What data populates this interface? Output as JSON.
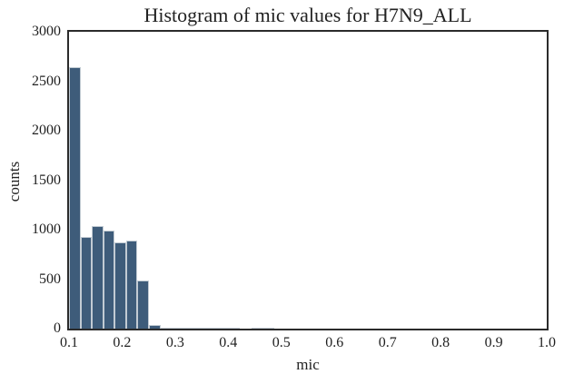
{
  "figure": {
    "title": "Histogram of mic values for H7N9_ALL",
    "xlabel": "mic",
    "ylabel": "counts"
  },
  "colors": {
    "bar_fill": "#3e5c7a",
    "bar_edge": "#c2cbd3",
    "spine": "#2b2b2b",
    "text": "#1f1f1f",
    "background": "#ffffff"
  },
  "chart_data": {
    "type": "bar",
    "subtype": "histogram",
    "title": "Histogram of mic values for H7N9_ALL",
    "xlabel": "mic",
    "ylabel": "counts",
    "xlim": [
      0.1,
      1.0
    ],
    "ylim": [
      0,
      3000
    ],
    "grid": false,
    "legend_position": "none",
    "x_tick_labels": [
      "0.1",
      "0.2",
      "0.3",
      "0.4",
      "0.5",
      "0.6",
      "0.7",
      "0.8",
      "0.9",
      "1.0"
    ],
    "x_tick_values": [
      0.1,
      0.2,
      0.3,
      0.4,
      0.5,
      0.6,
      0.7,
      0.8,
      0.9,
      1.0
    ],
    "y_tick_labels": [
      "0",
      "500",
      "1000",
      "1500",
      "2000",
      "2500",
      "3000"
    ],
    "y_tick_values": [
      0,
      500,
      1000,
      1500,
      2000,
      2500,
      3000
    ],
    "bin_start": 0.1,
    "bin_width": 0.0215,
    "counts": [
      2640,
      925,
      1040,
      990,
      875,
      890,
      490,
      33,
      6,
      5,
      4,
      4,
      3,
      3,
      3,
      0,
      3,
      3
    ]
  }
}
